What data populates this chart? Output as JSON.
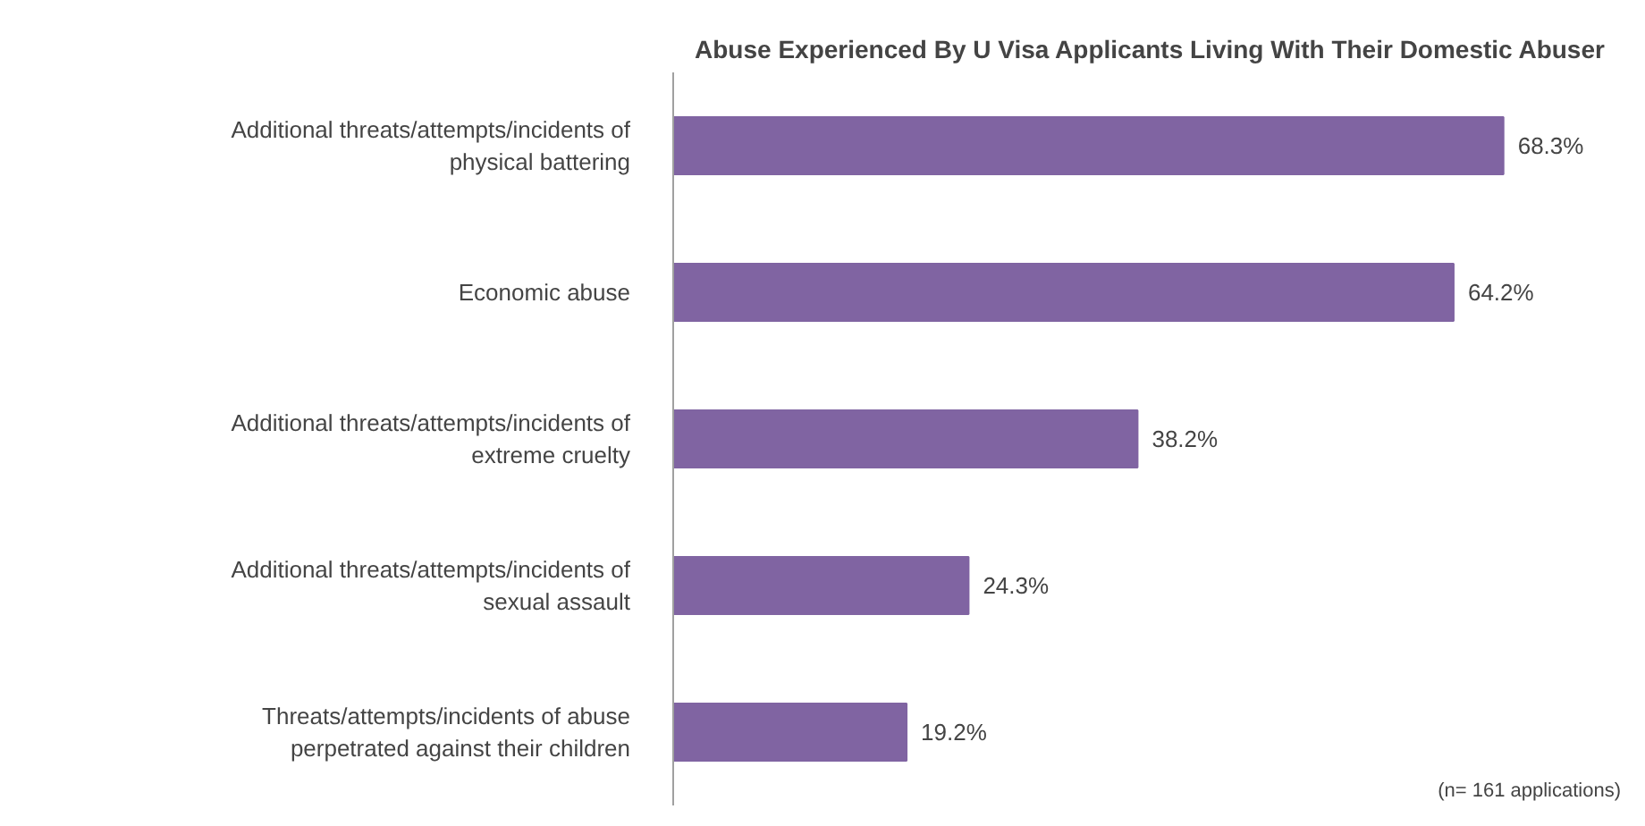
{
  "chart_data": {
    "type": "bar",
    "orientation": "horizontal",
    "title": "Abuse Experienced By U Visa Applicants Living With Their Domestic Abuser",
    "categories": [
      "Additional threats/attempts/incidents of\nphysical battering",
      "Economic abuse",
      "Additional threats/attempts/incidents of\nextreme cruelty",
      "Additional threats/attempts/incidents of\nsexual assault",
      "Threats/attempts/incidents of abuse\nperpetrated against their children"
    ],
    "values": [
      68.3,
      64.2,
      38.2,
      24.3,
      19.2
    ],
    "value_labels": [
      "68.3%",
      "64.2%",
      "38.2%",
      "24.3%",
      "19.2%"
    ],
    "color": "#8064a2",
    "grid": false,
    "annotations": [
      "(n= 161 applications)"
    ]
  }
}
